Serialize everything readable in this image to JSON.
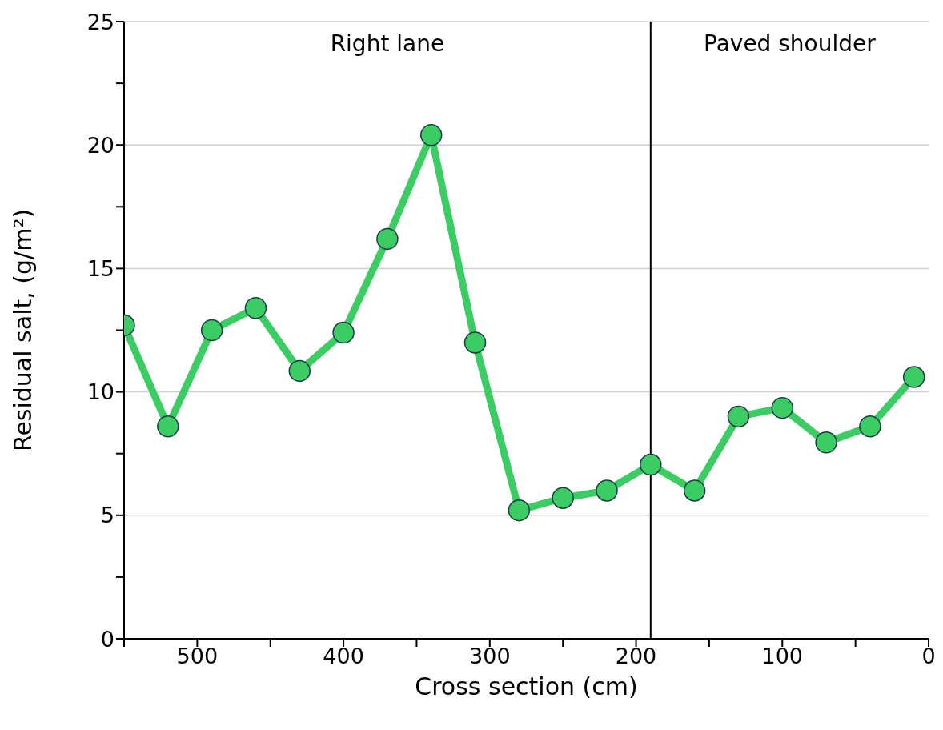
{
  "chart_data": {
    "type": "line",
    "xlabel": "Cross section (cm)",
    "ylabel": "Residual salt, (g/m²)",
    "x": [
      550,
      520,
      490,
      460,
      430,
      400,
      370,
      340,
      310,
      280,
      250,
      220,
      190,
      160,
      130,
      100,
      70,
      40,
      10
    ],
    "series": [
      {
        "color": "#3ccc64",
        "values": [
          12.7,
          8.6,
          12.5,
          13.4,
          10.85,
          12.4,
          16.2,
          20.4,
          12.0,
          5.2,
          5.7,
          6.0,
          7.05,
          6.0,
          9.0,
          9.35,
          7.95,
          8.6,
          10.6
        ]
      }
    ],
    "xlim": [
      550,
      0
    ],
    "xticks": [
      {
        "value": 550,
        "label": null
      },
      500,
      {
        "value": 450,
        "label": null
      },
      400,
      {
        "value": 350,
        "label": null
      },
      300,
      {
        "value": 250,
        "label": null
      },
      200,
      {
        "value": 150,
        "label": null
      },
      100,
      {
        "value": 50,
        "label": null
      },
      0
    ],
    "ylim": [
      0,
      25
    ],
    "yticks": [
      0,
      {
        "value": 2.5,
        "label": null
      },
      5,
      {
        "value": 7.5,
        "label": null
      },
      10,
      {
        "value": 12.5,
        "label": null
      },
      15,
      {
        "value": 17.5,
        "label": null
      },
      20,
      {
        "value": 22.5,
        "label": null
      },
      25
    ],
    "grid": "y",
    "marker": "circle",
    "line_style": "solid",
    "legend": false,
    "ref_lines": [
      {
        "axis": "x",
        "value": 190,
        "color": "#000000"
      }
    ],
    "annotations": [
      "Right lane",
      "Paved shoulder"
    ]
  }
}
